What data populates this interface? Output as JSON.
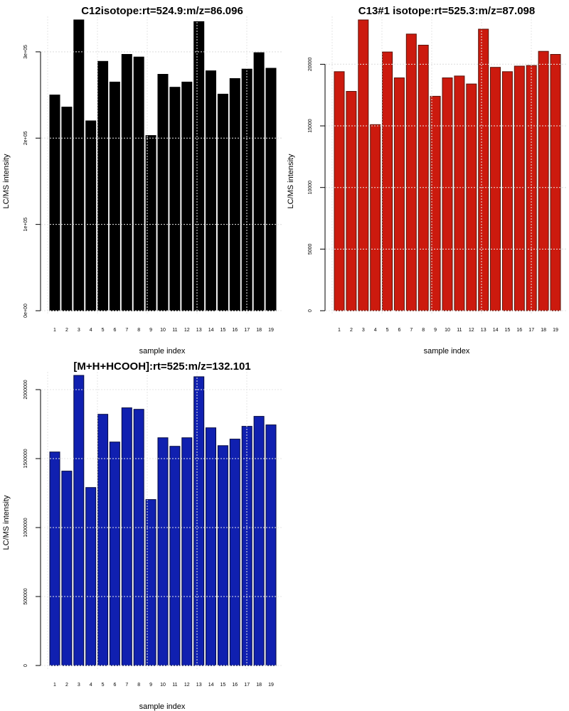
{
  "chart_data": [
    {
      "type": "bar",
      "title": "C12isotope:rt=524.9:m/z=86.096",
      "xlabel": "sample index",
      "ylabel": "LC/MS intensity",
      "categories": [
        "1",
        "2",
        "3",
        "4",
        "5",
        "6",
        "7",
        "8",
        "9",
        "10",
        "11",
        "12",
        "13",
        "14",
        "15",
        "16",
        "17",
        "18",
        "19"
      ],
      "values": [
        250000,
        236000,
        337000,
        220000,
        289000,
        265000,
        297000,
        294000,
        203000,
        274000,
        259000,
        265000,
        335000,
        278000,
        251000,
        269000,
        280000,
        299000,
        281000
      ],
      "yticks": [
        0,
        100000,
        200000,
        300000
      ],
      "ytick_labels": [
        "0e+00",
        "1e+05",
        "2e+05",
        "3e+05"
      ],
      "ylim": [
        0,
        337000
      ],
      "grid": true,
      "bar_color": "#000000",
      "bar_border": "#000000"
    },
    {
      "type": "bar",
      "title": "C13#1 isotope:rt=525.3:m/z=87.098",
      "xlabel": "sample index",
      "ylabel": "LC/MS intensity",
      "categories": [
        "1",
        "2",
        "3",
        "4",
        "5",
        "6",
        "7",
        "8",
        "9",
        "10",
        "11",
        "12",
        "13",
        "14",
        "15",
        "16",
        "17",
        "18",
        "19"
      ],
      "values": [
        19400,
        17800,
        23600,
        15100,
        21000,
        18900,
        22450,
        21550,
        17400,
        18900,
        19050,
        18400,
        22850,
        19750,
        19400,
        19850,
        19900,
        21050,
        20800
      ],
      "yticks": [
        0,
        5000,
        10000,
        15000,
        20000
      ],
      "ytick_labels": [
        "0",
        "5000",
        "10000",
        "15000",
        "20000"
      ],
      "ylim": [
        0,
        23600
      ],
      "grid": true,
      "bar_color": "#cc1a0e",
      "bar_border": "#5a1208"
    },
    {
      "type": "bar",
      "title": "[M+H+HCOOH]:rt=525:m/z=132.101",
      "xlabel": "sample index",
      "ylabel": "LC/MS intensity",
      "categories": [
        "1",
        "2",
        "3",
        "4",
        "5",
        "6",
        "7",
        "8",
        "9",
        "10",
        "11",
        "12",
        "13",
        "14",
        "15",
        "16",
        "17",
        "18",
        "19"
      ],
      "values": [
        1548000,
        1409000,
        2103000,
        1290000,
        1821000,
        1620000,
        1868000,
        1857000,
        1203000,
        1651000,
        1589000,
        1651000,
        2093000,
        1723000,
        1594000,
        1641000,
        1734000,
        1806000,
        1744000
      ],
      "yticks": [
        0,
        500000,
        1000000,
        1500000,
        2000000
      ],
      "ytick_labels": [
        "0",
        "500000",
        "1000000",
        "1500000",
        "2000000"
      ],
      "ylim": [
        0,
        2103000
      ],
      "grid": true,
      "bar_color": "#1020b0",
      "bar_border": "#050a40"
    }
  ]
}
